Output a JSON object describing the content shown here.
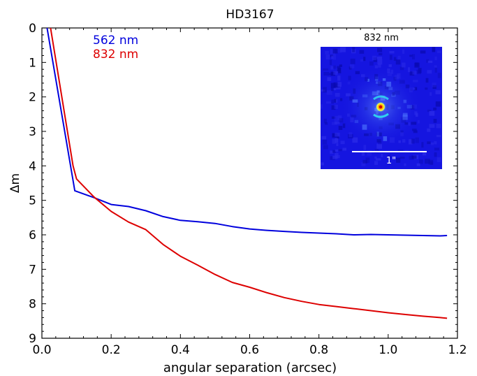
{
  "chart_data": {
    "type": "line",
    "title": "HD3167",
    "xlabel": "angular separation (arcsec)",
    "ylabel": "Δm",
    "xlim": [
      0.0,
      1.2
    ],
    "ylim": [
      0,
      9
    ],
    "y_inverted": true,
    "x_ticks": [
      0.0,
      0.2,
      0.4,
      0.6,
      0.8,
      1.0,
      1.2
    ],
    "x_tick_labels": [
      "0.0",
      "0.2",
      "0.4",
      "0.6",
      "0.8",
      "1.0",
      "1.2"
    ],
    "y_ticks": [
      0,
      1,
      2,
      3,
      4,
      5,
      6,
      7,
      8,
      9
    ],
    "y_tick_labels": [
      "0",
      "1",
      "2",
      "3",
      "4",
      "5",
      "6",
      "7",
      "8",
      "9"
    ],
    "grid": false,
    "legend_position": "top-left",
    "series": [
      {
        "name": "562 nm",
        "color": "#0000dd",
        "x": [
          0.015,
          0.095,
          0.15,
          0.2,
          0.25,
          0.3,
          0.35,
          0.4,
          0.45,
          0.5,
          0.55,
          0.6,
          0.65,
          0.7,
          0.75,
          0.8,
          0.85,
          0.9,
          0.95,
          1.0,
          1.05,
          1.1,
          1.15,
          1.17
        ],
        "y": [
          0.0,
          4.72,
          4.92,
          5.12,
          5.18,
          5.3,
          5.47,
          5.58,
          5.62,
          5.67,
          5.76,
          5.83,
          5.87,
          5.9,
          5.93,
          5.95,
          5.97,
          6.0,
          5.99,
          6.0,
          6.01,
          6.02,
          6.03,
          6.02
        ]
      },
      {
        "name": "832 nm",
        "color": "#dd0000",
        "x": [
          0.025,
          0.09,
          0.1,
          0.15,
          0.2,
          0.25,
          0.3,
          0.35,
          0.4,
          0.45,
          0.5,
          0.55,
          0.6,
          0.65,
          0.7,
          0.75,
          0.8,
          0.85,
          0.9,
          0.95,
          1.0,
          1.05,
          1.1,
          1.15,
          1.17
        ],
        "y": [
          0.0,
          4.0,
          4.38,
          4.9,
          5.32,
          5.63,
          5.85,
          6.28,
          6.62,
          6.88,
          7.15,
          7.38,
          7.52,
          7.68,
          7.82,
          7.93,
          8.02,
          8.08,
          8.14,
          8.2,
          8.26,
          8.31,
          8.36,
          8.4,
          8.42
        ]
      }
    ],
    "inset": {
      "label": "832 nm",
      "scale_label": "1\"",
      "background_color": "#1515e0"
    }
  }
}
